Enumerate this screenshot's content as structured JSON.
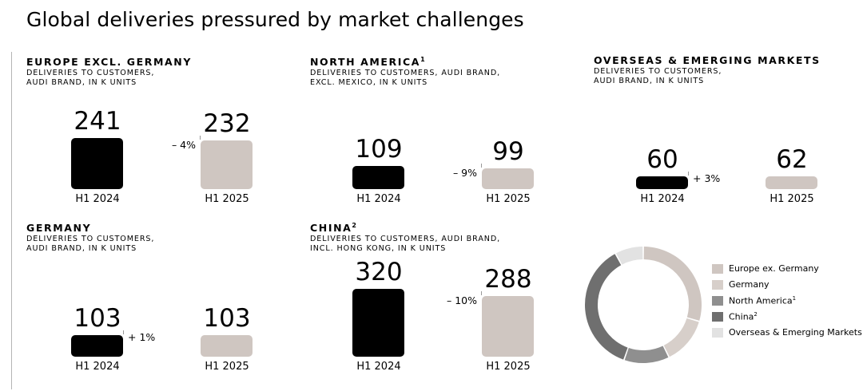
{
  "title": "Global deliveries pressured by market challenges",
  "chart_data": [
    {
      "type": "bar",
      "title": "EUROPE EXCL. GERMANY",
      "subtitle": "DELIVERIES TO CUSTOMERS, AUDI BRAND, IN K UNITS",
      "categories": [
        "H1 2024",
        "H1 2025"
      ],
      "values": [
        241,
        232
      ],
      "change": "– 4%"
    },
    {
      "type": "bar",
      "title": "NORTH AMERICA",
      "title_sup": "1",
      "subtitle": "DELIVERIES TO CUSTOMERS, AUDI BRAND, EXCL. MEXICO, IN K UNITS",
      "categories": [
        "H1 2024",
        "H1 2025"
      ],
      "values": [
        109,
        99
      ],
      "change": "– 9%"
    },
    {
      "type": "bar",
      "title": "OVERSEAS & EMERGING MARKETS",
      "subtitle": "DELIVERIES TO CUSTOMERS, AUDI BRAND, IN K UNITS",
      "categories": [
        "H1 2024",
        "H1 2025"
      ],
      "values": [
        60,
        62
      ],
      "change": "+ 3%"
    },
    {
      "type": "bar",
      "title": "GERMANY",
      "subtitle": "DELIVERIES TO CUSTOMERS, AUDI BRAND, IN K UNITS",
      "categories": [
        "H1 2024",
        "H1 2025"
      ],
      "values": [
        103,
        103
      ],
      "change": "+ 1%"
    },
    {
      "type": "bar",
      "title": "CHINA",
      "title_sup": "2",
      "subtitle": "DELIVERIES TO CUSTOMERS, AUDI BRAND, INCL. HONG KONG, IN K UNITS",
      "categories": [
        "H1 2024",
        "H1 2025"
      ],
      "values": [
        320,
        288
      ],
      "change": "– 10%"
    },
    {
      "type": "pie",
      "categories": [
        "Europe ex. Germany",
        "Germany",
        "North America",
        "China",
        "Overseas & Emerging Markets"
      ],
      "superscripts": [
        "",
        "",
        "1",
        "2",
        ""
      ],
      "values": [
        232,
        103,
        99,
        288,
        62
      ],
      "colors": [
        "#cfc6c1",
        "#d7cfca",
        "#8f8f8f",
        "#6f6f6f",
        "#e2e2e2"
      ]
    }
  ],
  "colors": {
    "prior_year": "#000000",
    "current_year": "#cfc6c1"
  }
}
